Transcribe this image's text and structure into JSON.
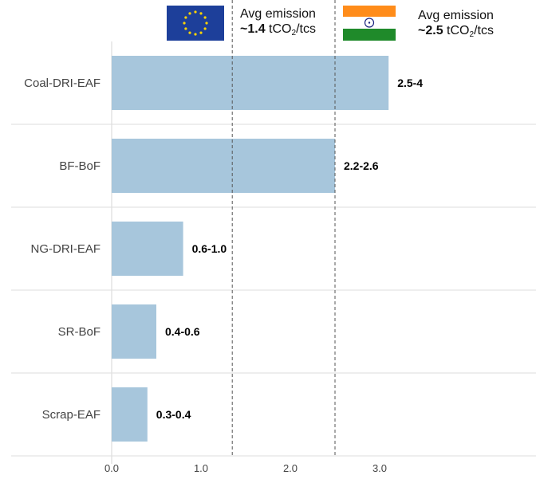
{
  "chart_data": {
    "type": "bar",
    "orientation": "horizontal",
    "categories": [
      "Coal-DRI-EAF",
      "BF-BoF",
      "NG-DRI-EAF",
      "SR-BoF",
      "Scrap-EAF"
    ],
    "values": [
      3.1,
      2.5,
      0.8,
      0.5,
      0.4
    ],
    "value_labels": [
      "2.5-4",
      "2.2-2.6",
      "0.6-1.0",
      "0.4-0.6",
      "0.3-0.4"
    ],
    "xticks": [
      "0.0",
      "1.0",
      "2.0",
      "3.0"
    ],
    "xlim": [
      0,
      3.5
    ],
    "bar_color": "#a7c6dc",
    "reference_lines": [
      {
        "value": 1.35,
        "style": "dashed"
      },
      {
        "value": 2.5,
        "style": "dashed"
      }
    ]
  },
  "annotations": {
    "eu": {
      "prefix": "Avg emission",
      "approx": "~",
      "value": "1.4",
      "unit_a": "tCO",
      "unit_sub": "2",
      "unit_b": "/tcs",
      "flag": "eu-flag"
    },
    "india": {
      "prefix": "Avg emission",
      "approx": "~",
      "value": "2.5",
      "unit_a": "tCO",
      "unit_sub": "2",
      "unit_b": "/tcs",
      "flag": "india-flag"
    }
  },
  "colors": {
    "eu_blue": "#1d3f9a",
    "eu_star": "#ffd400",
    "india_saffron": "#ff8c1a",
    "india_green": "#1f8a2a",
    "india_chakra": "#1a237e"
  }
}
